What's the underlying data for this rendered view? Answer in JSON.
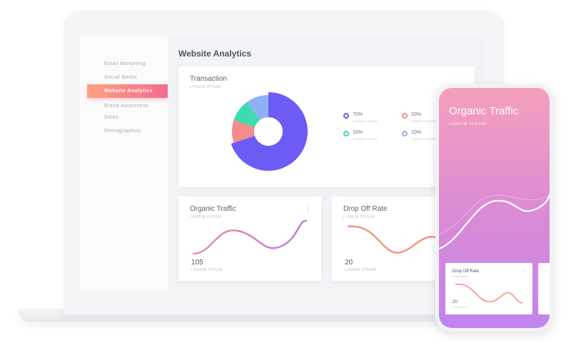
{
  "sidebar": {
    "items": [
      {
        "label": "Email Marketing"
      },
      {
        "label": "Social Media"
      },
      {
        "label": "Website Analytics",
        "active": true
      },
      {
        "label": "Brand Awareness"
      },
      {
        "label": "Sales"
      },
      {
        "label": "Demographics"
      }
    ]
  },
  "main": {
    "title": "Website Analytics",
    "transaction": {
      "title": "Transaction",
      "subtitle": "LOREM IPSUM",
      "legend": [
        {
          "value": "70%",
          "label": "LOREM IPSUM",
          "color": "#6c5cf5"
        },
        {
          "value": "10%",
          "label": "LOREM IPSUM",
          "color": "#f38c88"
        },
        {
          "value": "10%",
          "label": "LOREM IPSUM",
          "color": "#3ddbb0"
        },
        {
          "value": "10%",
          "label": "LOREM IPSUM",
          "color": "#8fb0f7"
        }
      ],
      "slices": [
        {
          "value": 70,
          "color": "#6c5cf5"
        },
        {
          "value": 10,
          "color": "#f38c88"
        },
        {
          "value": 10,
          "color": "#3ddbb0"
        },
        {
          "value": 10,
          "color": "#8fb0f7"
        }
      ]
    },
    "organic": {
      "title": "Organic Traffic",
      "subtitle": "LOREM IPSUM",
      "value": "105",
      "value_label": "LOREM IPSUM",
      "menu": "⋮"
    },
    "dropoff": {
      "title": "Drop Off Rate",
      "subtitle": "LOREM IPSUM",
      "value": "20",
      "value_label": "LOREM IPSUM"
    }
  },
  "phone": {
    "title": "Organic Traffic",
    "subtitle": "LOREM IPSUM",
    "card": {
      "title": "Drop Off Rate",
      "subtitle": "LOREM IPSUM",
      "value": "20",
      "value_label": "LOREM IPSUM",
      "menu": "⋮"
    }
  }
}
